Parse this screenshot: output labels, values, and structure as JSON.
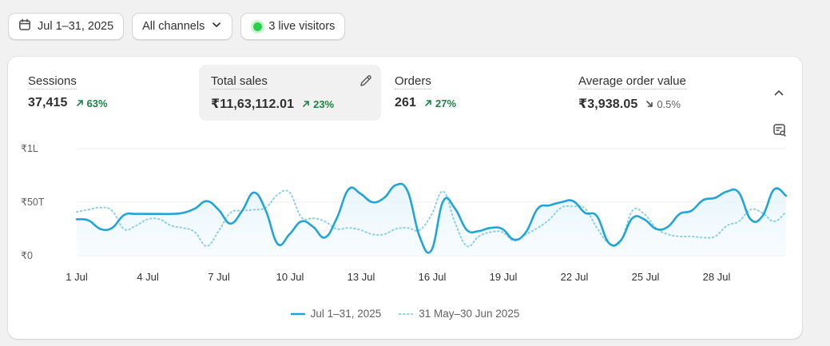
{
  "filters": {
    "date_range": "Jul 1–31, 2025",
    "channel": "All channels",
    "live_visitors": "3 live visitors"
  },
  "metrics": [
    {
      "label": "Sessions",
      "value": "37,415",
      "change": "63%",
      "direction": "up"
    },
    {
      "label": "Total sales",
      "value": "₹11,63,112.01",
      "change": "23%",
      "direction": "up"
    },
    {
      "label": "Orders",
      "value": "261",
      "change": "27%",
      "direction": "up"
    },
    {
      "label": "Average order value",
      "value": "₹3,938.05",
      "change": "0.5%",
      "direction": "down"
    }
  ],
  "colors": {
    "current_series": "#21a5d6",
    "previous_series": "#8ecfe6",
    "positive": "#1a8245",
    "live_dot": "#29d14a"
  },
  "chart_data": {
    "type": "line",
    "y_tick_labels": [
      "₹1L",
      "₹50T",
      "₹0"
    ],
    "y_ticks": [
      100000,
      50000,
      0
    ],
    "ylim": [
      0,
      100000
    ],
    "x_tick_labels": [
      "1 Jul",
      "4 Jul",
      "7 Jul",
      "10 Jul",
      "13 Jul",
      "16 Jul",
      "19 Jul",
      "22 Jul",
      "25 Jul",
      "28 Jul"
    ],
    "x_tick_days": [
      1,
      4,
      7,
      10,
      13,
      16,
      19,
      22,
      25,
      28
    ],
    "xlim": [
      1,
      31
    ],
    "grid": true,
    "legend": "bottom",
    "series": [
      {
        "name": "Jul 1–31, 2025",
        "style": "solid",
        "x": [
          1,
          1.5,
          2,
          2.5,
          3,
          3.5,
          4,
          4.5,
          5,
          5.5,
          6,
          6.5,
          7,
          7.5,
          8,
          8.5,
          9,
          9.5,
          10,
          10.5,
          11,
          11.5,
          12,
          12.5,
          13,
          13.5,
          14,
          14.5,
          15,
          15.5,
          16,
          16.5,
          17,
          17.5,
          18,
          18.5,
          19,
          19.5,
          20,
          20.5,
          21,
          21.5,
          22,
          22.5,
          23,
          23.5,
          24,
          24.5,
          25,
          25.5,
          26,
          26.5,
          27,
          27.5,
          28,
          28.5,
          29,
          29.5,
          30,
          30.5,
          31
        ],
        "values": [
          34000,
          33000,
          25000,
          26000,
          38000,
          39000,
          39000,
          39000,
          39000,
          40000,
          44000,
          51000,
          43000,
          30000,
          42000,
          59000,
          42000,
          11000,
          20000,
          32000,
          27000,
          17000,
          35000,
          62000,
          58000,
          50000,
          54000,
          66000,
          60000,
          18000,
          5000,
          51000,
          44000,
          24000,
          23000,
          26000,
          25000,
          15000,
          22000,
          44000,
          47000,
          50000,
          51000,
          40000,
          37000,
          12000,
          14000,
          35000,
          34000,
          25000,
          27000,
          39000,
          42000,
          52000,
          54000,
          60000,
          59000,
          34000,
          37000,
          62000,
          56000
        ]
      },
      {
        "name": "31 May–30 Jun 2025",
        "style": "dotted",
        "x": [
          1,
          1.5,
          2,
          2.5,
          3,
          3.5,
          4,
          4.5,
          5,
          5.5,
          6,
          6.5,
          7,
          7.5,
          8,
          8.5,
          9,
          9.5,
          10,
          10.5,
          11,
          11.5,
          12,
          12.5,
          13,
          13.5,
          14,
          14.5,
          15,
          15.5,
          16,
          16.5,
          17,
          17.5,
          18,
          18.5,
          19,
          19.5,
          20,
          20.5,
          21,
          21.5,
          22,
          22.5,
          23,
          23.5,
          24,
          24.5,
          25,
          25.5,
          26,
          26.5,
          27,
          27.5,
          28,
          28.5,
          29,
          29.5,
          30,
          30.5,
          31
        ],
        "values": [
          41000,
          43000,
          45000,
          42000,
          25000,
          28000,
          34000,
          34000,
          28000,
          26000,
          22000,
          9000,
          23000,
          40000,
          42000,
          43000,
          45000,
          57000,
          59000,
          36000,
          35000,
          32000,
          25000,
          26000,
          24000,
          20000,
          20000,
          25000,
          26000,
          24000,
          38000,
          60000,
          31000,
          9000,
          18000,
          22000,
          22000,
          14000,
          20000,
          26000,
          34000,
          45000,
          46000,
          44000,
          26000,
          12000,
          13000,
          42000,
          39000,
          26000,
          20000,
          18000,
          18000,
          17000,
          18000,
          28000,
          32000,
          43000,
          40000,
          32000,
          41000
        ]
      }
    ]
  }
}
